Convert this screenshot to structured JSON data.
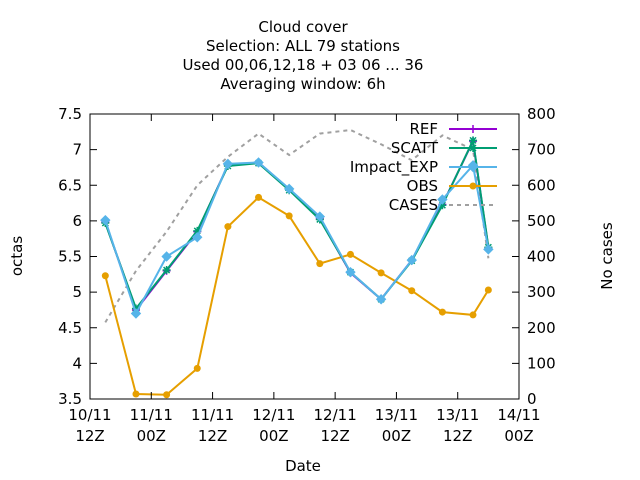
{
  "chart_data": {
    "type": "line",
    "title_lines": [
      "Cloud cover",
      "Selection: ALL     79 stations",
      "Used  00,06,12,18 + 03 06 ... 36",
      "Averaging window:  6h"
    ],
    "xlabel": "Date",
    "ylabel": "octas",
    "y2label": "No cases",
    "x_ticks": [
      {
        "x": 0,
        "l1": "10/11",
        "l2": "12Z"
      },
      {
        "x": 12,
        "l1": "11/11",
        "l2": "00Z"
      },
      {
        "x": 24,
        "l1": "11/11",
        "l2": "12Z"
      },
      {
        "x": 36,
        "l1": "12/11",
        "l2": "00Z"
      },
      {
        "x": 48,
        "l1": "12/11",
        "l2": "12Z"
      },
      {
        "x": 60,
        "l1": "13/11",
        "l2": "00Z"
      },
      {
        "x": 72,
        "l1": "13/11",
        "l2": "12Z"
      },
      {
        "x": 84,
        "l1": "14/11",
        "l2": "00Z"
      }
    ],
    "xlim": [
      0,
      84
    ],
    "ylim": [
      3.5,
      7.5
    ],
    "y_ticks": [
      "3.5",
      "4",
      "4.5",
      "5",
      "5.5",
      "6",
      "6.5",
      "7",
      "7.5"
    ],
    "y2lim": [
      0,
      800
    ],
    "y2_ticks": [
      "0",
      "100",
      "200",
      "300",
      "400",
      "500",
      "600",
      "700",
      "800"
    ],
    "legend_position": "top-right",
    "grid": false,
    "series": [
      {
        "name": "REF",
        "color": "#9400d3",
        "axis": "y",
        "marker": "plus",
        "x": [
          3,
          9,
          15,
          21,
          27,
          33,
          39,
          45,
          51,
          57,
          63,
          69,
          75,
          78
        ],
        "values": [
          5.98,
          4.75,
          5.3,
          5.85,
          6.78,
          6.82,
          6.44,
          6.03,
          5.27,
          4.9,
          5.45,
          6.23,
          7.12,
          5.62
        ]
      },
      {
        "name": "SCATT",
        "color": "#009e73",
        "axis": "y",
        "marker": "asterisk",
        "x": [
          3,
          9,
          15,
          21,
          27,
          33,
          39,
          45,
          51,
          57,
          63,
          69,
          75,
          78
        ],
        "values": [
          5.97,
          4.77,
          5.31,
          5.86,
          6.77,
          6.81,
          6.43,
          6.02,
          5.28,
          4.9,
          5.44,
          6.22,
          7.13,
          5.63
        ]
      },
      {
        "name": "Impact_EXP",
        "color": "#56b4e9",
        "axis": "y",
        "marker": "diamond",
        "x": [
          3,
          9,
          15,
          21,
          27,
          33,
          39,
          45,
          51,
          57,
          63,
          69,
          75,
          78
        ],
        "values": [
          6.01,
          4.7,
          5.5,
          5.77,
          6.8,
          6.82,
          6.45,
          6.06,
          5.28,
          4.9,
          5.45,
          6.3,
          6.78,
          5.6
        ]
      },
      {
        "name": "OBS",
        "color": "#e69f00",
        "axis": "y",
        "marker": "dot",
        "x": [
          3,
          9,
          15,
          21,
          27,
          33,
          39,
          45,
          51,
          57,
          63,
          69,
          75,
          78
        ],
        "values": [
          5.23,
          3.57,
          3.56,
          3.93,
          5.92,
          6.33,
          6.07,
          5.4,
          5.53,
          5.27,
          5.02,
          4.72,
          4.68,
          5.03
        ]
      },
      {
        "name": "CASES",
        "color": "#a0a0a0",
        "axis": "y2",
        "marker": "none",
        "dashed": true,
        "x": [
          3,
          9,
          15,
          21,
          27,
          33,
          39,
          45,
          51,
          57,
          63,
          69,
          75,
          78
        ],
        "values": [
          215,
          360,
          470,
          600,
          680,
          745,
          685,
          745,
          755,
          715,
          670,
          740,
          700,
          395
        ]
      }
    ]
  }
}
